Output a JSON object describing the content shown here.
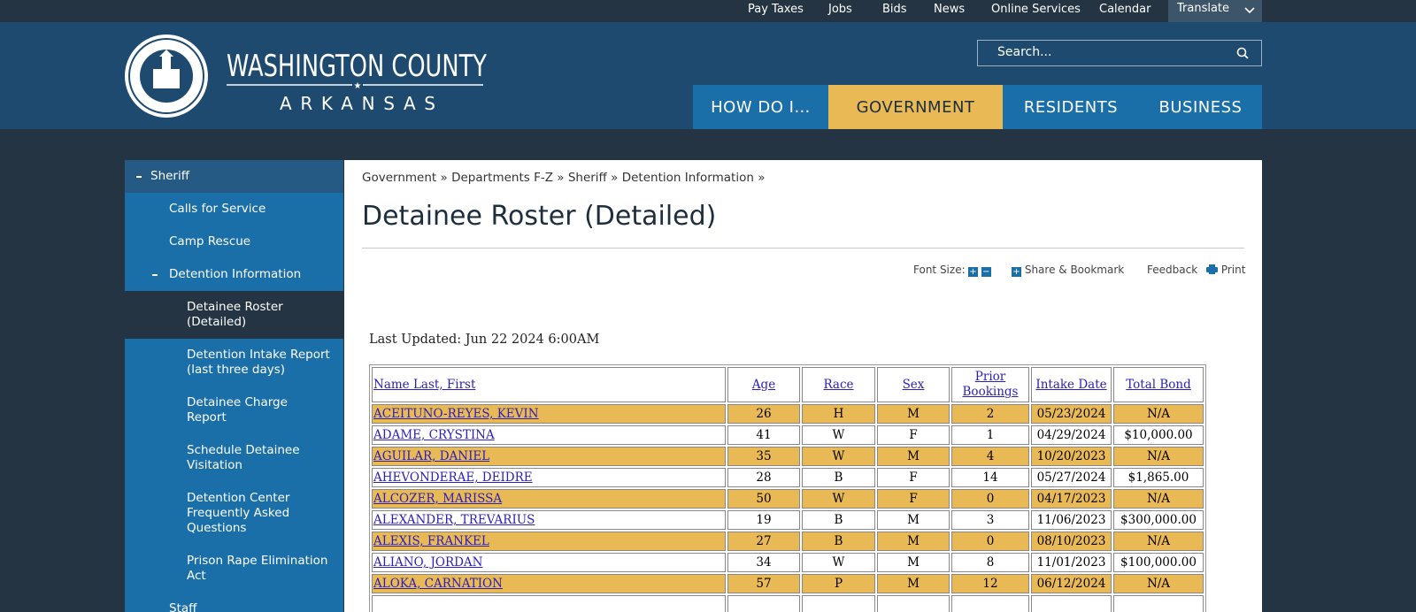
{
  "top_nav": {
    "links": [
      "Pay Taxes",
      "Jobs",
      "Bids",
      "News",
      "Online Services",
      "Calendar"
    ],
    "translate": "Translate"
  },
  "logo": {
    "title": "WASHINGTON COUNTY",
    "subtitle": "ARKANSAS"
  },
  "search": {
    "placeholder": "Search..."
  },
  "main_nav": [
    "HOW DO I…",
    "GOVERNMENT",
    "RESIDENTS",
    "BUSINESS"
  ],
  "sidebar": [
    "Sheriff",
    "Calls for Service",
    "Camp Rescue",
    "Detention Information",
    "Detainee Roster (Detailed)",
    "Detention Intake Report (last three days)",
    "Detainee Charge Report",
    "Schedule Detainee Visitation",
    "Detention Center Frequently Asked Questions",
    "Prison Rape Elimination Act",
    "Staff"
  ],
  "breadcrumb": {
    "items": [
      "Government",
      "Departments F-Z",
      "Sheriff",
      "Detention Information"
    ],
    "separator": "»"
  },
  "page_title": "Detainee Roster (Detailed)",
  "tools": {
    "font_size": "Font Size:",
    "share": "Share & Bookmark",
    "feedback": "Feedback",
    "print": "Print"
  },
  "last_updated": "Last Updated: Jun 22 2024 6:00AM",
  "table": {
    "header": [
      "Name Last, First",
      "Age",
      "Race",
      "Sex",
      "Prior Bookings",
      "Intake Date",
      "Total Bond"
    ],
    "rows": [
      [
        "ACEITUNO-REYES, KEVIN",
        26,
        "H",
        "M",
        2,
        "05/23/2024",
        "N/A"
      ],
      [
        "ADAME, CRYSTINA",
        41,
        "W",
        "F",
        1,
        "04/29/2024",
        "$10,000.00"
      ],
      [
        "AGUILAR, DANIEL",
        35,
        "W",
        "M",
        4,
        "10/20/2023",
        "N/A"
      ],
      [
        "AHEVONDERAE, DEIDRE",
        28,
        "B",
        "F",
        14,
        "05/27/2024",
        "$1,865.00"
      ],
      [
        "ALCOZER, MARISSA",
        50,
        "W",
        "F",
        0,
        "04/17/2023",
        "N/A"
      ],
      [
        "ALEXANDER, TREVARIUS",
        19,
        "B",
        "M",
        3,
        "11/06/2023",
        "$300,000.00"
      ],
      [
        "ALEXIS, FRANKEL",
        27,
        "B",
        "M",
        0,
        "08/10/2023",
        "N/A"
      ],
      [
        "ALIANO, JORDAN",
        34,
        "W",
        "M",
        8,
        "11/01/2023",
        "$100,000.00"
      ],
      [
        "ALOKA, CARNATION",
        57,
        "P",
        "M",
        12,
        "06/12/2024",
        "N/A"
      ]
    ]
  }
}
